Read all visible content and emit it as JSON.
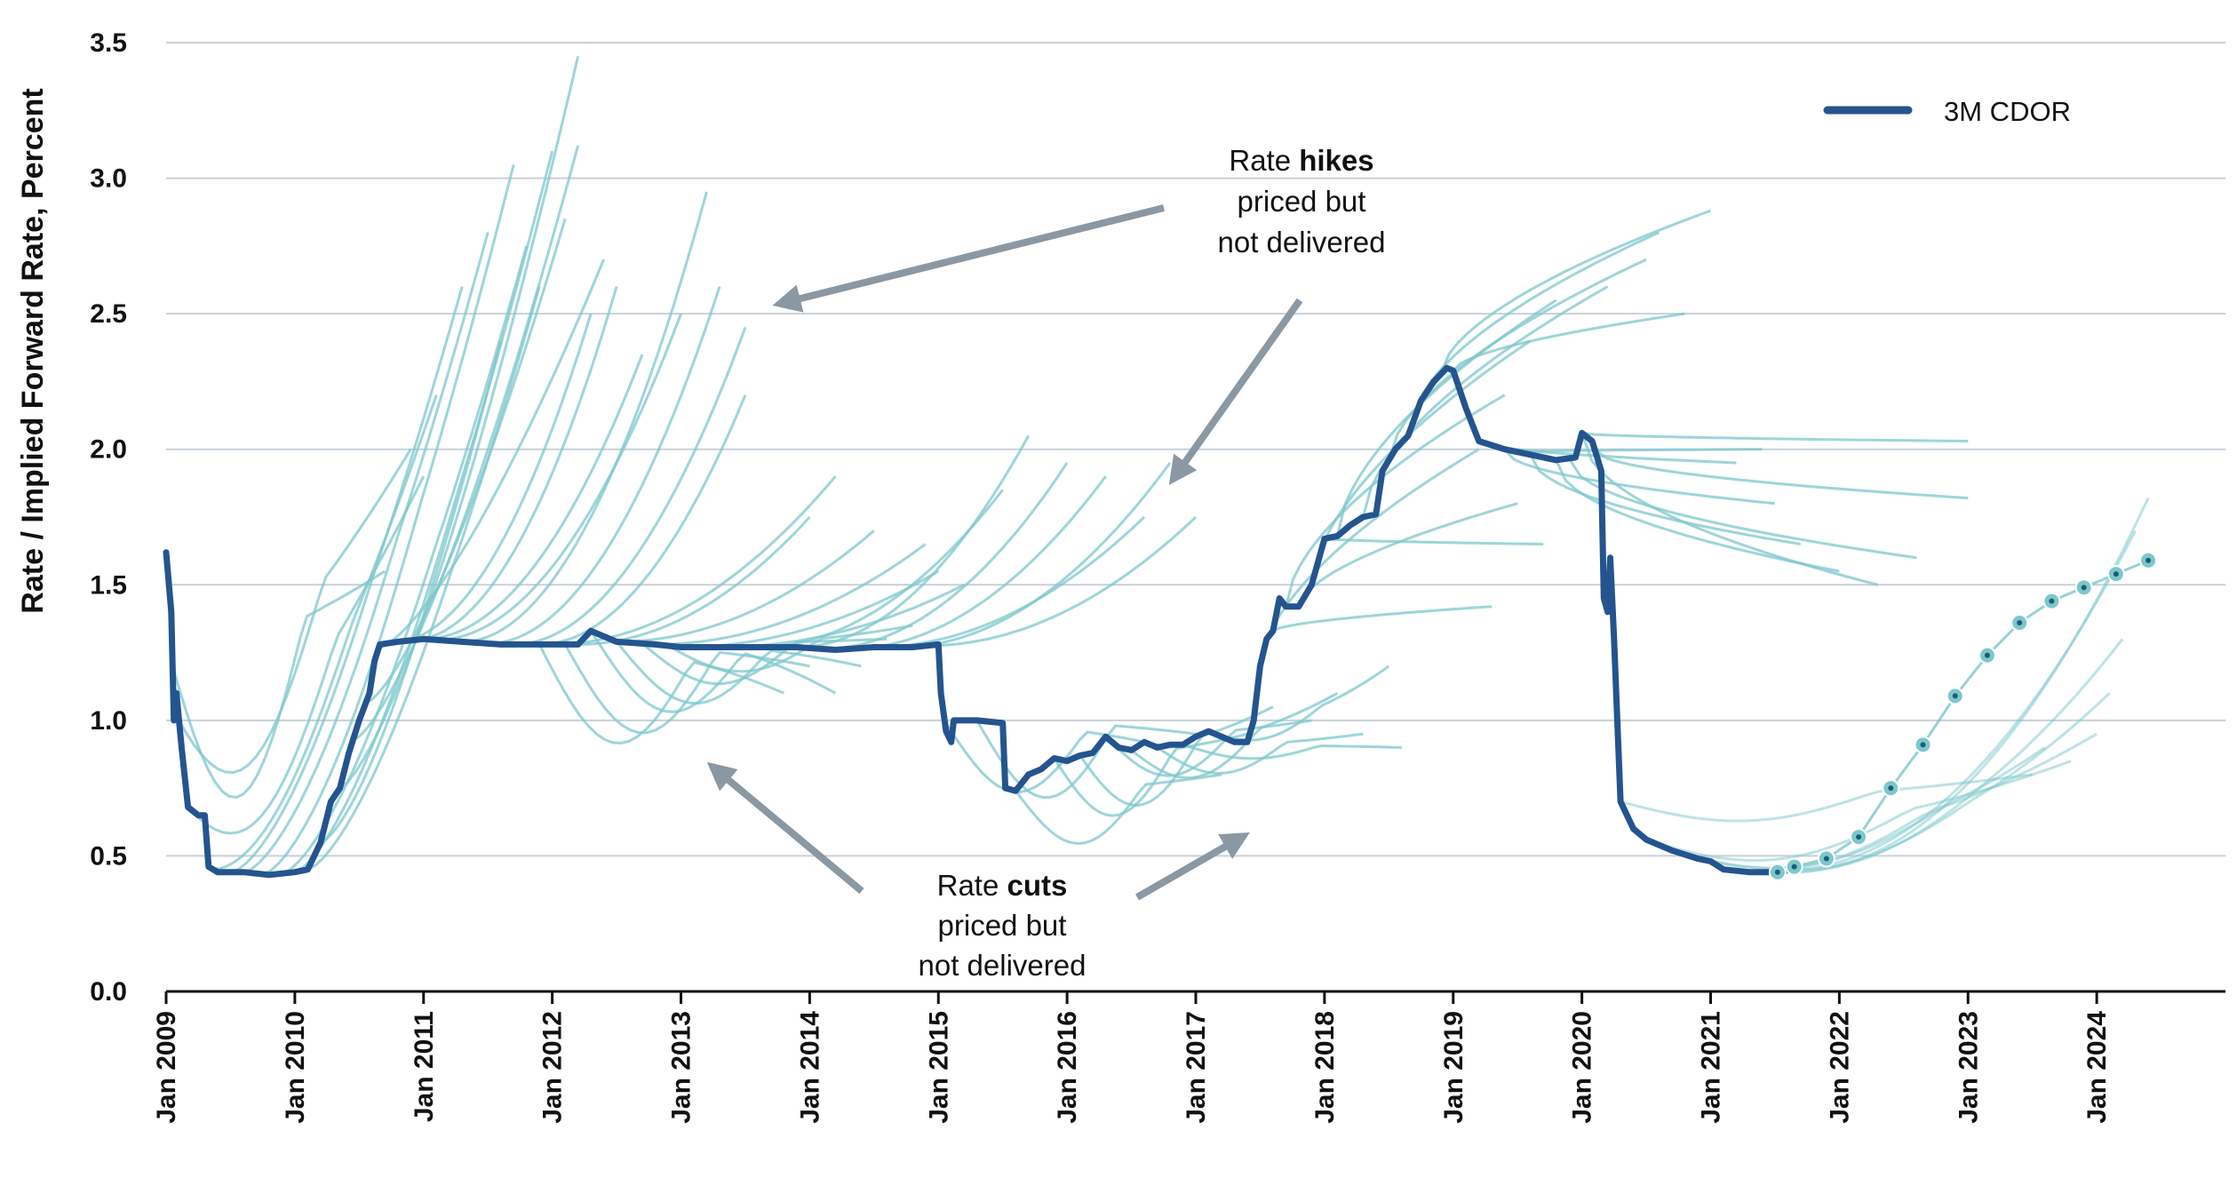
{
  "chart_data": {
    "type": "line",
    "title": "",
    "xlabel": "",
    "ylabel": "Rate / Implied Forward Rate, Percent",
    "ylim": [
      0,
      3.5
    ],
    "xlim": [
      2009.0,
      2025.0
    ],
    "grid": true,
    "legend_position": "top-right",
    "y_ticks": [
      "0.0",
      "0.5",
      "1.0",
      "1.5",
      "2.0",
      "2.5",
      "3.0",
      "3.5"
    ],
    "x_ticks": [
      {
        "label": "Jan 2009",
        "value": 2009
      },
      {
        "label": "Jan 2010",
        "value": 2010
      },
      {
        "label": "Jan 2011",
        "value": 2011
      },
      {
        "label": "Jan 2012",
        "value": 2012
      },
      {
        "label": "Jan 2013",
        "value": 2013
      },
      {
        "label": "Jan 2014",
        "value": 2014
      },
      {
        "label": "Jan 2015",
        "value": 2015
      },
      {
        "label": "Jan 2016",
        "value": 2016
      },
      {
        "label": "Jan 2017",
        "value": 2017
      },
      {
        "label": "Jan 2018",
        "value": 2018
      },
      {
        "label": "Jan 2019",
        "value": 2019
      },
      {
        "label": "Jan 2020",
        "value": 2020
      },
      {
        "label": "Jan 2021",
        "value": 2021
      },
      {
        "label": "Jan 2022",
        "value": 2022
      },
      {
        "label": "Jan 2023",
        "value": 2023
      },
      {
        "label": "Jan 2024",
        "value": 2024
      }
    ],
    "series": [
      {
        "name": "3M CDOR",
        "color": "#24548f",
        "points": [
          [
            2009.0,
            1.62
          ],
          [
            2009.04,
            1.4
          ],
          [
            2009.06,
            1.0
          ],
          [
            2009.08,
            1.1
          ],
          [
            2009.12,
            0.9
          ],
          [
            2009.17,
            0.68
          ],
          [
            2009.25,
            0.65
          ],
          [
            2009.3,
            0.65
          ],
          [
            2009.33,
            0.46
          ],
          [
            2009.4,
            0.44
          ],
          [
            2009.6,
            0.44
          ],
          [
            2009.8,
            0.43
          ],
          [
            2010.0,
            0.44
          ],
          [
            2010.1,
            0.45
          ],
          [
            2010.2,
            0.55
          ],
          [
            2010.28,
            0.7
          ],
          [
            2010.35,
            0.75
          ],
          [
            2010.42,
            0.88
          ],
          [
            2010.5,
            1.0
          ],
          [
            2010.58,
            1.1
          ],
          [
            2010.62,
            1.22
          ],
          [
            2010.66,
            1.28
          ],
          [
            2010.8,
            1.29
          ],
          [
            2011.0,
            1.3
          ],
          [
            2011.3,
            1.29
          ],
          [
            2011.6,
            1.28
          ],
          [
            2011.9,
            1.28
          ],
          [
            2012.2,
            1.28
          ],
          [
            2012.3,
            1.33
          ],
          [
            2012.5,
            1.29
          ],
          [
            2012.8,
            1.28
          ],
          [
            2013.0,
            1.27
          ],
          [
            2013.3,
            1.27
          ],
          [
            2013.6,
            1.27
          ],
          [
            2013.9,
            1.27
          ],
          [
            2014.2,
            1.26
          ],
          [
            2014.5,
            1.27
          ],
          [
            2014.8,
            1.27
          ],
          [
            2015.0,
            1.28
          ],
          [
            2015.02,
            1.1
          ],
          [
            2015.06,
            0.96
          ],
          [
            2015.1,
            0.92
          ],
          [
            2015.12,
            1.0
          ],
          [
            2015.3,
            1.0
          ],
          [
            2015.5,
            0.99
          ],
          [
            2015.52,
            0.75
          ],
          [
            2015.6,
            0.74
          ],
          [
            2015.7,
            0.8
          ],
          [
            2015.8,
            0.82
          ],
          [
            2015.9,
            0.86
          ],
          [
            2016.0,
            0.85
          ],
          [
            2016.1,
            0.87
          ],
          [
            2016.2,
            0.88
          ],
          [
            2016.3,
            0.94
          ],
          [
            2016.4,
            0.9
          ],
          [
            2016.5,
            0.89
          ],
          [
            2016.6,
            0.92
          ],
          [
            2016.7,
            0.9
          ],
          [
            2016.8,
            0.91
          ],
          [
            2016.9,
            0.91
          ],
          [
            2017.0,
            0.94
          ],
          [
            2017.1,
            0.96
          ],
          [
            2017.2,
            0.94
          ],
          [
            2017.3,
            0.92
          ],
          [
            2017.4,
            0.92
          ],
          [
            2017.45,
            1.0
          ],
          [
            2017.5,
            1.2
          ],
          [
            2017.55,
            1.3
          ],
          [
            2017.6,
            1.33
          ],
          [
            2017.65,
            1.45
          ],
          [
            2017.7,
            1.42
          ],
          [
            2017.8,
            1.42
          ],
          [
            2017.9,
            1.5
          ],
          [
            2018.0,
            1.67
          ],
          [
            2018.1,
            1.68
          ],
          [
            2018.2,
            1.72
          ],
          [
            2018.3,
            1.75
          ],
          [
            2018.4,
            1.76
          ],
          [
            2018.45,
            1.92
          ],
          [
            2018.55,
            2.0
          ],
          [
            2018.65,
            2.05
          ],
          [
            2018.75,
            2.18
          ],
          [
            2018.85,
            2.25
          ],
          [
            2018.95,
            2.3
          ],
          [
            2019.0,
            2.29
          ],
          [
            2019.1,
            2.15
          ],
          [
            2019.2,
            2.03
          ],
          [
            2019.4,
            2.0
          ],
          [
            2019.6,
            1.98
          ],
          [
            2019.8,
            1.96
          ],
          [
            2019.95,
            1.97
          ],
          [
            2020.0,
            2.06
          ],
          [
            2020.08,
            2.03
          ],
          [
            2020.15,
            1.92
          ],
          [
            2020.17,
            1.45
          ],
          [
            2020.2,
            1.4
          ],
          [
            2020.22,
            1.6
          ],
          [
            2020.25,
            1.3
          ],
          [
            2020.3,
            0.7
          ],
          [
            2020.4,
            0.6
          ],
          [
            2020.5,
            0.56
          ],
          [
            2020.7,
            0.52
          ],
          [
            2020.9,
            0.49
          ],
          [
            2021.0,
            0.48
          ],
          [
            2021.1,
            0.45
          ],
          [
            2021.3,
            0.44
          ],
          [
            2021.5,
            0.44
          ],
          [
            2021.6,
            0.45
          ]
        ]
      }
    ],
    "forecast_markers": [
      [
        2021.52,
        0.44
      ],
      [
        2021.65,
        0.46
      ],
      [
        2021.9,
        0.49
      ],
      [
        2022.15,
        0.57
      ],
      [
        2022.4,
        0.75
      ],
      [
        2022.65,
        0.91
      ],
      [
        2022.9,
        1.09
      ],
      [
        2023.15,
        1.24
      ],
      [
        2023.4,
        1.36
      ],
      [
        2023.65,
        1.44
      ],
      [
        2023.9,
        1.49
      ],
      [
        2024.15,
        1.54
      ],
      [
        2024.4,
        1.59
      ]
    ],
    "annotations": [
      {
        "id": "hikes",
        "line1_prefix": "Rate ",
        "line1_bold": "hikes",
        "line2": "priced but",
        "line3": "not delivered"
      },
      {
        "id": "cuts",
        "line1_prefix": "Rate ",
        "line1_bold": "cuts",
        "line2": "priced but",
        "line3": "not delivered"
      }
    ]
  },
  "colors": {
    "cdor": "#24548f",
    "forward": "#7cc7cc",
    "grid": "#c7d1d8",
    "arrow": "#8a98a3",
    "marker": "#2fa2b5"
  }
}
